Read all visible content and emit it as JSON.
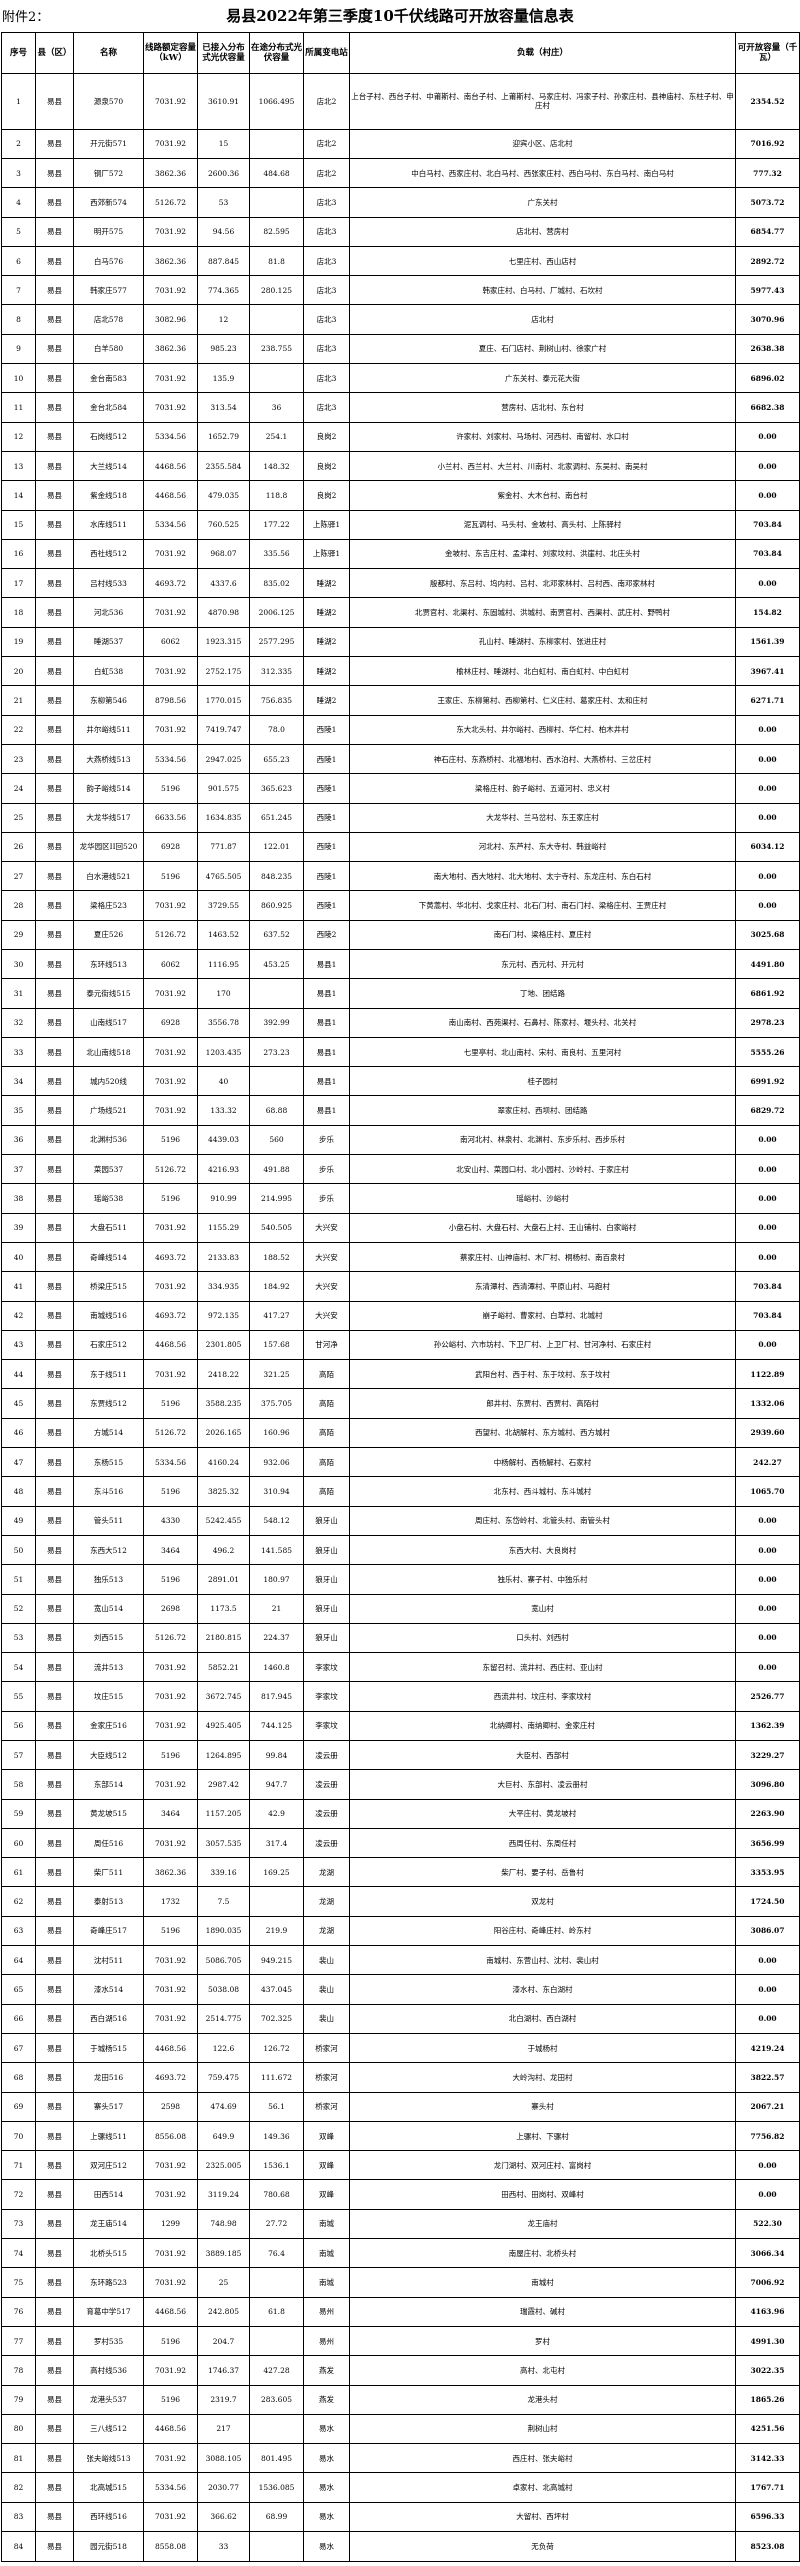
{
  "header": {
    "note": "附件2：",
    "title": "易县2022年第三季度10千伏线路可开放容量信息表"
  },
  "table": {
    "columns": [
      "序号",
      "县（区）",
      "名称",
      "线路额定容量（kW）",
      "已接入分布式光伏容量",
      "在途分布式光伏容量",
      "所属变电站",
      "负载（村庄）",
      "可开放容量（千瓦）"
    ],
    "rows": [
      [
        "1",
        "易县",
        "源泉570",
        "7031.92",
        "3610.91",
        "1066.495",
        "店北2",
        "上台子村、西台子村、中莆斯村、南台子村、上莆斯村、马家庄村、冯家子村、孙家庄村、县神庙村、东柱子村、申庄村",
        "2354.52"
      ],
      [
        "2",
        "易县",
        "开元街571",
        "7031.92",
        "15",
        null,
        "店北2",
        "迎宾小区、店北村",
        "7016.92"
      ],
      [
        "3",
        "易县",
        "钢厂572",
        "3862.36",
        "2600.36",
        "484.68",
        "店北2",
        "中白马村、西家庄村、北白马村、西张家庄村、西白马村、东白马村、南白马村",
        "777.32"
      ],
      [
        "4",
        "易县",
        "西郊新574",
        "5126.72",
        "53",
        null,
        "店北3",
        "广东关村",
        "5073.72"
      ],
      [
        "5",
        "易县",
        "明开575",
        "7031.92",
        "94.56",
        "82.595",
        "店北3",
        "店北村、营房村",
        "6854.77"
      ],
      [
        "6",
        "易县",
        "白马576",
        "3862.36",
        "887.845",
        "81.8",
        "店北3",
        "七里庄村、西山店村",
        "2892.72"
      ],
      [
        "7",
        "易县",
        "韩家庄577",
        "7031.92",
        "774.365",
        "280.125",
        "店北3",
        "韩家庄村、白马村、厂城村、石坎村",
        "5977.43"
      ],
      [
        "8",
        "易县",
        "店北578",
        "3082.96",
        "12",
        null,
        "店北3",
        "店北村",
        "3070.96"
      ],
      [
        "9",
        "易县",
        "白羊580",
        "3862.36",
        "985.23",
        "238.755",
        "店北3",
        "夏庄、石门店村、荆树山村、徐家广村",
        "2638.38"
      ],
      [
        "10",
        "易县",
        "金台南583",
        "7031.92",
        "135.9",
        null,
        "店北3",
        "广东关村、泰元花大街",
        "6896.02"
      ],
      [
        "11",
        "易县",
        "金台北584",
        "7031.92",
        "313.54",
        "36",
        "店北3",
        "营房村、店北村、东台村",
        "6682.38"
      ],
      [
        "12",
        "易县",
        "石岗线512",
        "5334.56",
        "1652.79",
        "254.1",
        "良岗2",
        "许家村、刘家村、马场村、河西村、南留村、水口村",
        "0.00"
      ],
      [
        "13",
        "易县",
        "大兰线514",
        "4468.56",
        "2355.584",
        "148.32",
        "良岗2",
        "小兰村、西兰村、大兰村、川南村、北家调村、东吴村、南吴村",
        "0.00"
      ],
      [
        "14",
        "易县",
        "紫金线518",
        "4468.56",
        "479.035",
        "118.8",
        "良岗2",
        "紫金村、大木台村、南台村",
        "0.00"
      ],
      [
        "15",
        "易县",
        "水库线511",
        "5334.56",
        "760.525",
        "177.22",
        "上陈驿1",
        "泥瓦调村、马头村、金坡村、高头村、上陈驿村",
        "703.84"
      ],
      [
        "16",
        "易县",
        "西社线512",
        "7031.92",
        "968.07",
        "335.56",
        "上陈驿1",
        "金坡村、东吉庄村、孟津村、刘家坟村、洪崖村、北庄头村",
        "703.84"
      ],
      [
        "17",
        "易县",
        "吕村线533",
        "4693.72",
        "4337.6",
        "835.02",
        "睡湖2",
        "殷都村、东吕村、坞内村、吕村、北邓家林村、吕村西、南邓家林村",
        "0.00"
      ],
      [
        "18",
        "易县",
        "河北536",
        "7031.92",
        "4870.98",
        "2006.125",
        "睡湖2",
        "北贾官村、北渠村、东固城村、洪城村、南贾官村、西渠村、武庄村、野鸭村",
        "154.82"
      ],
      [
        "19",
        "易县",
        "睡湖537",
        "6062",
        "1923.315",
        "2577.295",
        "睡湖2",
        "孔山村、睡湖村、东柳家村、张进庄村",
        "1561.39"
      ],
      [
        "20",
        "易县",
        "白虹538",
        "7031.92",
        "2752.175",
        "312.335",
        "睡湖2",
        "榆林庄村、睡湖村、北白虹村、南白虹村、中白虹村",
        "3967.41"
      ],
      [
        "21",
        "易县",
        "东柳第546",
        "8798.56",
        "1770.015",
        "756.835",
        "睡湖2",
        "王家庄、东柳第村、西柳第村、仁义庄村、葛家庄村、太和庄村",
        "6271.71"
      ],
      [
        "22",
        "易县",
        "井尔峪线511",
        "7031.92",
        "7419.747",
        "78.0",
        "西陵1",
        "东大北头村、井尔峪村、西柳村、华仁村、柏木井村",
        "0.00"
      ],
      [
        "23",
        "易县",
        "大燕桥线513",
        "5334.56",
        "2947.025",
        "655.23",
        "西陵1",
        "神石庄村、东燕桥村、北福地村、西水泊村、大燕桥村、三岔庄村",
        "0.00"
      ],
      [
        "24",
        "易县",
        "韵子峪线514",
        "5196",
        "901.575",
        "365.623",
        "西陵1",
        "梁格庄村、韵子峪村、五道河村、忠义村",
        "0.00"
      ],
      [
        "25",
        "易县",
        "大龙华线517",
        "6633.56",
        "1634.835",
        "651.245",
        "西陵1",
        "大龙华村、兰马岔村、东王家庄村",
        "0.00"
      ],
      [
        "26",
        "易县",
        "龙华园区II回520",
        "6928",
        "771.87",
        "122.01",
        "西陵1",
        "河北村、东芦村、东大寺村、韩益峪村",
        "6034.12"
      ],
      [
        "27",
        "易县",
        "白水港线521",
        "5196",
        "4765.505",
        "848.235",
        "西陵1",
        "南大地村、西大地村、北大地村、太宁寺村、东龙庄村、东白石村",
        "0.00"
      ],
      [
        "28",
        "易县",
        "梁格庄523",
        "7031.92",
        "3729.55",
        "860.925",
        "西陵1",
        "下黄蒿村、华北村、戈家庄村、北石门村、南石门村、梁格庄村、王贾庄村",
        "0.00"
      ],
      [
        "29",
        "易县",
        "夏庄526",
        "5126.72",
        "1463.52",
        "637.52",
        "西陵2",
        "南石门村、梁格庄村、夏庄村",
        "3025.68"
      ],
      [
        "30",
        "易县",
        "东环线513",
        "6062",
        "1116.95",
        "453.25",
        "易县1",
        "东元村、西元村、开元村",
        "4491.80"
      ],
      [
        "31",
        "易县",
        "泰元街线515",
        "7031.92",
        "170",
        null,
        "易县1",
        "丁地、团结路",
        "6861.92"
      ],
      [
        "32",
        "易县",
        "山南线517",
        "6928",
        "3556.78",
        "392.99",
        "易县1",
        "南山南村、西苑渠村、石鼻村、陈家村、堰头村、北关村",
        "2978.23"
      ],
      [
        "33",
        "易县",
        "北山南线518",
        "7031.92",
        "1203.435",
        "273.23",
        "易县1",
        "七里亭村、北山南村、宋村、南良村、五里河村",
        "5555.26"
      ],
      [
        "34",
        "易县",
        "城内520线",
        "7031.92",
        "40",
        null,
        "易县1",
        "桂子园村",
        "6991.92"
      ],
      [
        "35",
        "易县",
        "广场线521",
        "7031.92",
        "133.32",
        "68.88",
        "易县1",
        "翠家庄村、西坝村、团结路",
        "6829.72"
      ],
      [
        "36",
        "易县",
        "北渊村536",
        "5196",
        "4439.03",
        "560",
        "步乐",
        "南河北村、林泉村、北渊村、东步乐村、西步乐村",
        "0.00"
      ],
      [
        "37",
        "易县",
        "菜园537",
        "5126.72",
        "4216.93",
        "491.88",
        "步乐",
        "北安山村、菜园口村、北小园村、沙岭村、于家庄村",
        "0.00"
      ],
      [
        "38",
        "易县",
        "瑶峪538",
        "5196",
        "910.99",
        "214.995",
        "步乐",
        "瑶峪村、沙峪村",
        "0.00"
      ],
      [
        "39",
        "易县",
        "大盘石511",
        "7031.92",
        "1155.29",
        "540.505",
        "大兴安",
        "小盘石村、大盘石村、大盘石上村、王山铺村、白家峪村",
        "0.00"
      ],
      [
        "40",
        "易县",
        "奇峰线514",
        "4693.72",
        "2133.83",
        "188.52",
        "大兴安",
        "蔡家庄村、山神庙村、木厂村、桐杨村、南百泉村",
        "0.00"
      ],
      [
        "41",
        "易县",
        "桥梁庄515",
        "7031.92",
        "334.935",
        "184.92",
        "大兴安",
        "东清潭村、西清潭村、平原山村、马跑村",
        "703.84"
      ],
      [
        "42",
        "易县",
        "南城线516",
        "4693.72",
        "972.135",
        "417.27",
        "大兴安",
        "崩子峪村、曹家村、白草村、北城村",
        "703.84"
      ],
      [
        "43",
        "易县",
        "石家庄512",
        "4468.56",
        "2301.805",
        "157.68",
        "甘河净",
        "孙公峪村、六市坊村、下卫厂村、上卫厂村、甘河净村、石家庄村",
        "0.00"
      ],
      [
        "44",
        "易县",
        "东于线511",
        "7031.92",
        "2418.22",
        "321.25",
        "高陌",
        "武阳台村、西于村、东于坟村、东于坟村",
        "1122.89"
      ],
      [
        "45",
        "易县",
        "东贾线512",
        "5196",
        "3588.235",
        "375.705",
        "高陌",
        "郎井村、东贾村、西贾村、高陌村",
        "1332.06"
      ],
      [
        "46",
        "易县",
        "方城514",
        "5126.72",
        "2026.165",
        "160.96",
        "高陌",
        "西望村、北胡解村、东方城村、西方城村",
        "2939.60"
      ],
      [
        "47",
        "易县",
        "东杨515",
        "5334.56",
        "4160.24",
        "932.06",
        "高陌",
        "中杨解村、西杨解村、石家村",
        "242.27"
      ],
      [
        "48",
        "易县",
        "东斗516",
        "5196",
        "3825.32",
        "310.94",
        "高陌",
        "北东村、西斗城村、东斗城村",
        "1065.70"
      ],
      [
        "49",
        "易县",
        "管头511",
        "4330",
        "5242.455",
        "548.12",
        "狼牙山",
        "周庄村、东岱岭村、北管头村、南管头村",
        "0.00"
      ],
      [
        "50",
        "易县",
        "东西大512",
        "3464",
        "496.2",
        "141.585",
        "狼牙山",
        "东西大村、大良岗村",
        "0.00"
      ],
      [
        "51",
        "易县",
        "独乐513",
        "5196",
        "2891.01",
        "180.97",
        "狼牙山",
        "独乐村、寨子村、中独乐村",
        "0.00"
      ],
      [
        "52",
        "易县",
        "宽山514",
        "2698",
        "1173.5",
        "21",
        "狼牙山",
        "宽山村",
        "0.00"
      ],
      [
        "53",
        "易县",
        "刘西515",
        "5126.72",
        "2180.815",
        "224.37",
        "狼牙山",
        "口头村、刘西村",
        "0.00"
      ],
      [
        "54",
        "易县",
        "流井513",
        "7031.92",
        "5852.21",
        "1460.8",
        "李家坟",
        "东留召村、流井村、西庄村、亚山村",
        "0.00"
      ],
      [
        "55",
        "易县",
        "坟庄515",
        "7031.92",
        "3672.745",
        "817.945",
        "李家坟",
        "西流井村、坟庄村、李家坟村",
        "2526.77"
      ],
      [
        "56",
        "易县",
        "金家庄516",
        "7031.92",
        "4925.405",
        "744.125",
        "李家坟",
        "北纳卿村、南纳卿村、金家庄村",
        "1362.39"
      ],
      [
        "57",
        "易县",
        "大臣线512",
        "5196",
        "1264.895",
        "99.84",
        "凌云册",
        "大臣村、西部村",
        "3229.27"
      ],
      [
        "58",
        "易县",
        "东部514",
        "7031.92",
        "2987.42",
        "947.7",
        "凌云册",
        "大巨村、东部村、凌云册村",
        "3096.80"
      ],
      [
        "59",
        "易县",
        "黄龙坡515",
        "3464",
        "1157.205",
        "42.9",
        "凌云册",
        "大平庄村、黄龙坡村",
        "2263.90"
      ],
      [
        "60",
        "易县",
        "周任516",
        "7031.92",
        "3057.535",
        "317.4",
        "凌云册",
        "西周任村、东周任村",
        "3656.99"
      ],
      [
        "61",
        "易县",
        "柴厂511",
        "3862.36",
        "339.16",
        "169.25",
        "龙湖",
        "柴厂村、要子村、岳鲁村",
        "3353.95"
      ],
      [
        "62",
        "易县",
        "泰射513",
        "1732",
        "7.5",
        null,
        "龙湖",
        "双龙村",
        "1724.50"
      ],
      [
        "63",
        "易县",
        "奇峰庄517",
        "5196",
        "1890.035",
        "219.9",
        "龙湖",
        "阳谷庄村、奇峰庄村、岭东村",
        "3086.07"
      ],
      [
        "64",
        "易县",
        "沈村511",
        "7031.92",
        "5086.705",
        "949.215",
        "裴山",
        "南城村、东营山村、沈村、裴山村",
        "0.00"
      ],
      [
        "65",
        "易县",
        "漆水514",
        "7031.92",
        "5038.08",
        "437.045",
        "裴山",
        "漆水村、东白湖村",
        "0.00"
      ],
      [
        "66",
        "易县",
        "西白湖516",
        "7031.92",
        "2514.775",
        "702.325",
        "裴山",
        "北白湖村、西白湖村",
        "0.00"
      ],
      [
        "67",
        "易县",
        "于城杨515",
        "4468.56",
        "122.6",
        "126.72",
        "桥家河",
        "于城杨村",
        "4219.24"
      ],
      [
        "68",
        "易县",
        "龙田516",
        "4693.72",
        "759.475",
        "111.672",
        "桥家河",
        "大岭沟村、龙田村",
        "3822.57"
      ],
      [
        "69",
        "易县",
        "寨头517",
        "2598",
        "474.69",
        "56.1",
        "桥家河",
        "寨头村",
        "2067.21"
      ],
      [
        "70",
        "易县",
        "上骡线511",
        "8556.08",
        "649.9",
        "149.36",
        "双峰",
        "上骡村、下骡村",
        "7756.82"
      ],
      [
        "71",
        "易县",
        "双河庄512",
        "7031.92",
        "2325.005",
        "1536.1",
        "双峰",
        "龙门湖村、双河庄村、富岗村",
        "0.00"
      ],
      [
        "72",
        "易县",
        "田西514",
        "7031.92",
        "3119.24",
        "780.68",
        "双峰",
        "田西村、田岗村、双峰村",
        "0.00"
      ],
      [
        "73",
        "易县",
        "龙王庙514",
        "1299",
        "748.98",
        "27.72",
        "南城",
        "龙王庙村",
        "522.30"
      ],
      [
        "74",
        "易县",
        "北桥头515",
        "7031.92",
        "3889.185",
        "76.4",
        "南城",
        "南屋庄村、北桥头村",
        "3066.34"
      ],
      [
        "75",
        "易县",
        "东环路523",
        "7031.92",
        "25",
        null,
        "南城",
        "南城村",
        "7006.92"
      ],
      [
        "76",
        "易县",
        "育葛中学517",
        "4468.56",
        "242.805",
        "61.8",
        "易州",
        "瑞霞村、碱村",
        "4163.96"
      ],
      [
        "77",
        "易县",
        "罗村535",
        "5196",
        "204.7",
        null,
        "易州",
        "罗村",
        "4991.30"
      ],
      [
        "78",
        "易县",
        "高村线536",
        "7031.92",
        "1746.37",
        "427.28",
        "燕发",
        "高村、北屯村",
        "3022.35"
      ],
      [
        "79",
        "易县",
        "龙港头537",
        "5196",
        "2319.7",
        "283.605",
        "燕发",
        "龙港头村",
        "1865.26"
      ],
      [
        "80",
        "易县",
        "三八线512",
        "4468.56",
        "217",
        null,
        "易水",
        "荆树山村",
        "4251.56"
      ],
      [
        "81",
        "易县",
        "张夫峪线513",
        "7031.92",
        "3088.105",
        "801.495",
        "易水",
        "西庄村、张夫峪村",
        "3142.33"
      ],
      [
        "82",
        "易县",
        "北高城515",
        "5334.56",
        "2030.77",
        "1536.085",
        "易水",
        "卓家村、北高城村",
        "1767.71"
      ],
      [
        "83",
        "易县",
        "西环线516",
        "7031.92",
        "366.62",
        "68.99",
        "易水",
        "大留村、西坪村",
        "6596.33"
      ],
      [
        "84",
        "易县",
        "园元街518",
        "8558.08",
        "33",
        null,
        "易水",
        "无负荷",
        "8523.08"
      ]
    ]
  }
}
